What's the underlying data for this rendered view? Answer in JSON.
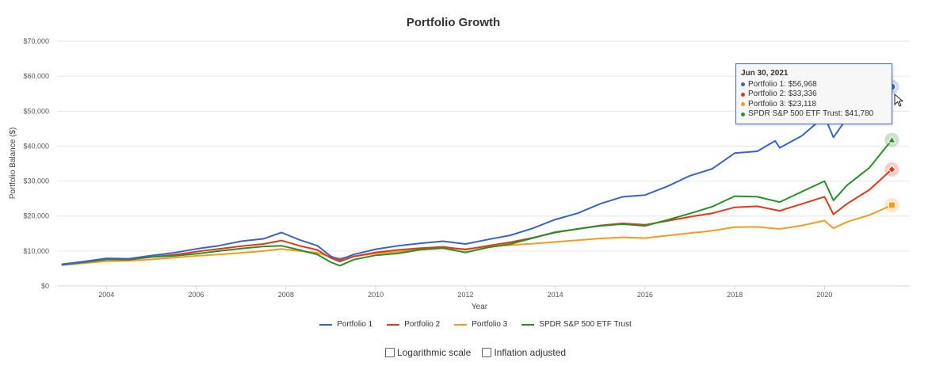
{
  "chart_data": {
    "type": "line",
    "title": "Portfolio Growth",
    "xlabel": "Year",
    "ylabel": "Portfolio Balance ($)",
    "xlim": [
      2002.9,
      2021.9
    ],
    "ylim": [
      0,
      70000
    ],
    "x_ticks": [
      "2004",
      "2006",
      "2008",
      "2010",
      "2012",
      "2014",
      "2016",
      "2018",
      "2020"
    ],
    "y_ticks": [
      "$0",
      "$10,000",
      "$20,000",
      "$30,000",
      "$40,000",
      "$50,000",
      "$60,000",
      "$70,000"
    ],
    "series": [
      {
        "name": "Portfolio 1",
        "color": "#3a63c5",
        "points": [
          [
            2003.0,
            6200
          ],
          [
            2003.5,
            7000
          ],
          [
            2004.0,
            7900
          ],
          [
            2004.5,
            7800
          ],
          [
            2005.0,
            8700
          ],
          [
            2005.5,
            9500
          ],
          [
            2006.0,
            10600
          ],
          [
            2006.5,
            11500
          ],
          [
            2007.0,
            12800
          ],
          [
            2007.5,
            13500
          ],
          [
            2007.9,
            15300
          ],
          [
            2008.3,
            13200
          ],
          [
            2008.7,
            11500
          ],
          [
            2009.0,
            8500
          ],
          [
            2009.2,
            7500
          ],
          [
            2009.5,
            9000
          ],
          [
            2010.0,
            10500
          ],
          [
            2010.5,
            11500
          ],
          [
            2011.0,
            12200
          ],
          [
            2011.5,
            12800
          ],
          [
            2012.0,
            12000
          ],
          [
            2012.5,
            13300
          ],
          [
            2013.0,
            14500
          ],
          [
            2013.5,
            16500
          ],
          [
            2014.0,
            19000
          ],
          [
            2014.5,
            20800
          ],
          [
            2015.0,
            23500
          ],
          [
            2015.5,
            25500
          ],
          [
            2016.0,
            26000
          ],
          [
            2016.5,
            28500
          ],
          [
            2017.0,
            31500
          ],
          [
            2017.5,
            33500
          ],
          [
            2018.0,
            38000
          ],
          [
            2018.5,
            38500
          ],
          [
            2018.9,
            41500
          ],
          [
            2019.0,
            39500
          ],
          [
            2019.5,
            43000
          ],
          [
            2020.0,
            48500
          ],
          [
            2020.2,
            42500
          ],
          [
            2020.5,
            48000
          ],
          [
            2021.0,
            51000
          ],
          [
            2021.5,
            56968
          ]
        ]
      },
      {
        "name": "Portfolio 2",
        "color": "#dd3a1c",
        "points": [
          [
            2003.0,
            6000
          ],
          [
            2003.5,
            6800
          ],
          [
            2004.0,
            7600
          ],
          [
            2004.5,
            7500
          ],
          [
            2005.0,
            8300
          ],
          [
            2005.5,
            8900
          ],
          [
            2006.0,
            9800
          ],
          [
            2006.5,
            10600
          ],
          [
            2007.0,
            11400
          ],
          [
            2007.5,
            12000
          ],
          [
            2007.9,
            13000
          ],
          [
            2008.3,
            11500
          ],
          [
            2008.7,
            10300
          ],
          [
            2009.0,
            8000
          ],
          [
            2009.2,
            7000
          ],
          [
            2009.5,
            8400
          ],
          [
            2010.0,
            9600
          ],
          [
            2010.5,
            10300
          ],
          [
            2011.0,
            10800
          ],
          [
            2011.5,
            11200
          ],
          [
            2012.0,
            10400
          ],
          [
            2012.5,
            11500
          ],
          [
            2013.0,
            12500
          ],
          [
            2013.5,
            13800
          ],
          [
            2014.0,
            15300
          ],
          [
            2014.5,
            16300
          ],
          [
            2015.0,
            17300
          ],
          [
            2015.5,
            17900
          ],
          [
            2016.0,
            17500
          ],
          [
            2016.5,
            18600
          ],
          [
            2017.0,
            19800
          ],
          [
            2017.5,
            20800
          ],
          [
            2018.0,
            22500
          ],
          [
            2018.5,
            22800
          ],
          [
            2019.0,
            21500
          ],
          [
            2019.5,
            23500
          ],
          [
            2020.0,
            25500
          ],
          [
            2020.2,
            20500
          ],
          [
            2020.5,
            23500
          ],
          [
            2021.0,
            27500
          ],
          [
            2021.5,
            33336
          ]
        ]
      },
      {
        "name": "Portfolio 3",
        "color": "#f29b1c",
        "points": [
          [
            2003.0,
            6000
          ],
          [
            2003.5,
            6500
          ],
          [
            2004.0,
            7100
          ],
          [
            2004.5,
            7200
          ],
          [
            2005.0,
            7600
          ],
          [
            2005.5,
            8100
          ],
          [
            2006.0,
            8600
          ],
          [
            2006.5,
            9000
          ],
          [
            2007.0,
            9500
          ],
          [
            2007.5,
            10000
          ],
          [
            2007.9,
            10600
          ],
          [
            2008.3,
            10000
          ],
          [
            2008.7,
            9500
          ],
          [
            2009.0,
            8300
          ],
          [
            2009.2,
            7900
          ],
          [
            2009.5,
            8500
          ],
          [
            2010.0,
            9300
          ],
          [
            2010.5,
            9800
          ],
          [
            2011.0,
            10400
          ],
          [
            2011.5,
            10800
          ],
          [
            2012.0,
            10600
          ],
          [
            2012.5,
            11200
          ],
          [
            2013.0,
            11700
          ],
          [
            2013.5,
            12100
          ],
          [
            2014.0,
            12600
          ],
          [
            2014.5,
            13100
          ],
          [
            2015.0,
            13600
          ],
          [
            2015.5,
            13900
          ],
          [
            2016.0,
            13700
          ],
          [
            2016.5,
            14400
          ],
          [
            2017.0,
            15100
          ],
          [
            2017.5,
            15800
          ],
          [
            2018.0,
            16800
          ],
          [
            2018.5,
            16900
          ],
          [
            2019.0,
            16300
          ],
          [
            2019.5,
            17300
          ],
          [
            2020.0,
            18700
          ],
          [
            2020.2,
            16500
          ],
          [
            2020.5,
            18300
          ],
          [
            2021.0,
            20300
          ],
          [
            2021.5,
            23118
          ]
        ]
      },
      {
        "name": "SPDR S&P 500 ETF Trust",
        "color": "#2a8f2a",
        "points": [
          [
            2003.0,
            6000
          ],
          [
            2003.5,
            6800
          ],
          [
            2004.0,
            7600
          ],
          [
            2004.5,
            7600
          ],
          [
            2005.0,
            8300
          ],
          [
            2005.5,
            8600
          ],
          [
            2006.0,
            9200
          ],
          [
            2006.5,
            10000
          ],
          [
            2007.0,
            10700
          ],
          [
            2007.5,
            11300
          ],
          [
            2007.9,
            11500
          ],
          [
            2008.3,
            10300
          ],
          [
            2008.7,
            9000
          ],
          [
            2009.0,
            6800
          ],
          [
            2009.2,
            5800
          ],
          [
            2009.5,
            7500
          ],
          [
            2010.0,
            8800
          ],
          [
            2010.5,
            9300
          ],
          [
            2011.0,
            10400
          ],
          [
            2011.5,
            10800
          ],
          [
            2012.0,
            9600
          ],
          [
            2012.5,
            11000
          ],
          [
            2013.0,
            12000
          ],
          [
            2013.5,
            13700
          ],
          [
            2014.0,
            15400
          ],
          [
            2014.5,
            16300
          ],
          [
            2015.0,
            17200
          ],
          [
            2015.5,
            17700
          ],
          [
            2016.0,
            17200
          ],
          [
            2016.5,
            18900
          ],
          [
            2017.0,
            20700
          ],
          [
            2017.5,
            22700
          ],
          [
            2018.0,
            25700
          ],
          [
            2018.5,
            25500
          ],
          [
            2019.0,
            24000
          ],
          [
            2019.5,
            27000
          ],
          [
            2020.0,
            30000
          ],
          [
            2020.2,
            24500
          ],
          [
            2020.5,
            28800
          ],
          [
            2021.0,
            33800
          ],
          [
            2021.5,
            41780
          ]
        ]
      }
    ],
    "markers": [
      "circle",
      "diamond",
      "square",
      "triangle"
    ]
  },
  "tooltip": {
    "date": "Jun 30, 2021",
    "rows": [
      {
        "text": "Portfolio 1: $56,968",
        "color": "#3a63c5"
      },
      {
        "text": "Portfolio 2: $33,336",
        "color": "#dd3a1c"
      },
      {
        "text": "Portfolio 3: $23,118",
        "color": "#f29b1c"
      },
      {
        "text": "SPDR S&P 500 ETF Trust: $41,780",
        "color": "#2a8f2a"
      }
    ]
  },
  "options": {
    "log_scale_label": "Logarithmic scale",
    "inflation_label": "Inflation adjusted"
  }
}
